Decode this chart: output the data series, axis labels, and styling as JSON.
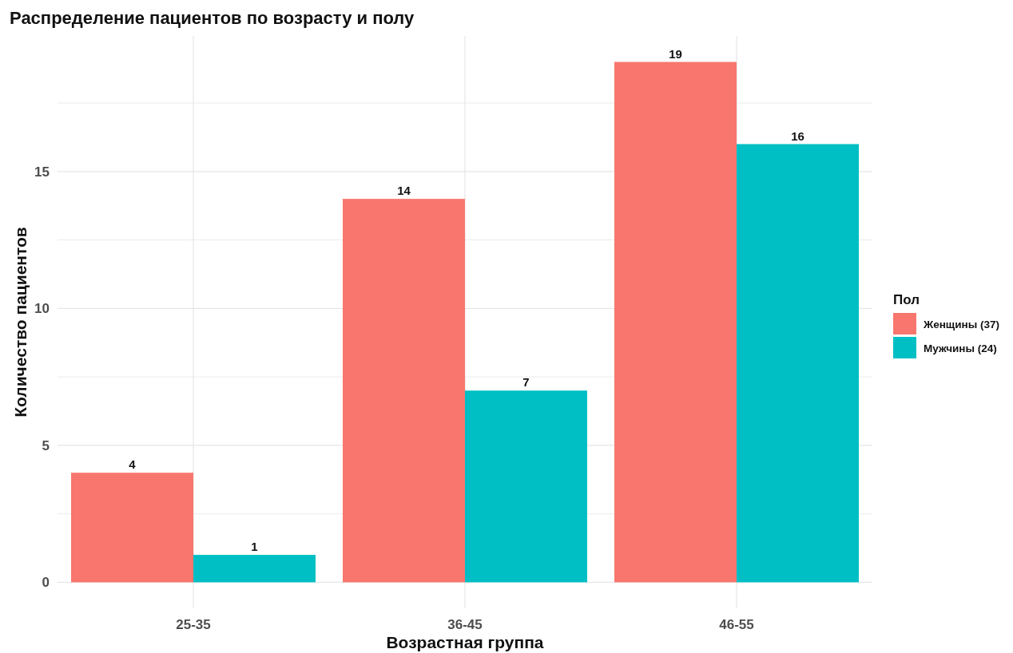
{
  "chart_data": {
    "type": "bar",
    "title": "Распределение пациентов по возрасту и полу",
    "xlabel": "Возрастная группа",
    "ylabel": "Количество пациентов",
    "legend_title": "Пол",
    "categories": [
      "25-35",
      "36-45",
      "46-55"
    ],
    "series": [
      {
        "name": "Женщины (37)",
        "color": "#f8766d",
        "values": [
          4,
          14,
          19
        ]
      },
      {
        "name": "Мужчины (24)",
        "color": "#00bfc4",
        "values": [
          1,
          7,
          16
        ]
      }
    ],
    "ylim": [
      -0.95,
      19.95
    ],
    "yticks": [
      0,
      {
        "value": 2.5,
        "label": null
      },
      5,
      {
        "value": 7.5,
        "label": null
      },
      10,
      {
        "value": 12.5,
        "label": null
      },
      15,
      {
        "value": 17.5,
        "label": null
      }
    ],
    "grid": true,
    "legend": "right",
    "data_labels": true
  }
}
